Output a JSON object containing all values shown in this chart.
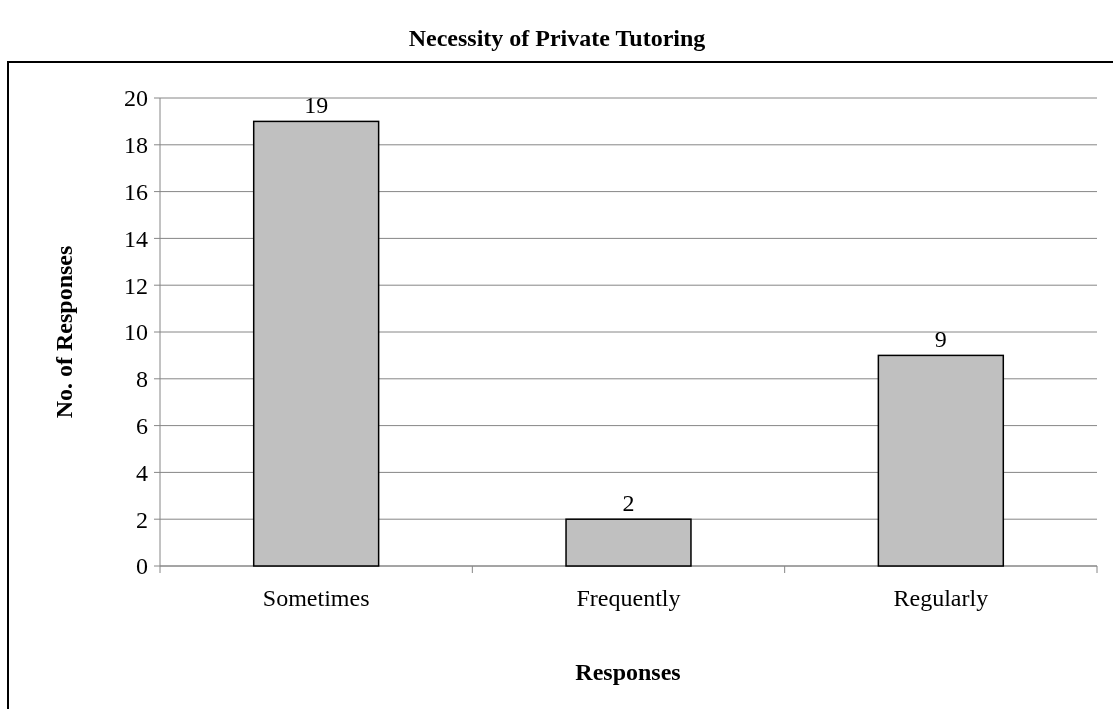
{
  "chart_data": {
    "type": "bar",
    "title": "Necessity of Private Tutoring",
    "xlabel": "Responses",
    "ylabel": "No. of Responses",
    "categories": [
      "Sometimes",
      "Frequently",
      "Regularly"
    ],
    "values": [
      19,
      2,
      9
    ],
    "color": "#c0c0c0",
    "ylim": [
      0,
      20
    ],
    "yticks": [
      0,
      2,
      4,
      6,
      8,
      10,
      12,
      14,
      16,
      18,
      20
    ],
    "grid": "y",
    "data_labels": true
  }
}
